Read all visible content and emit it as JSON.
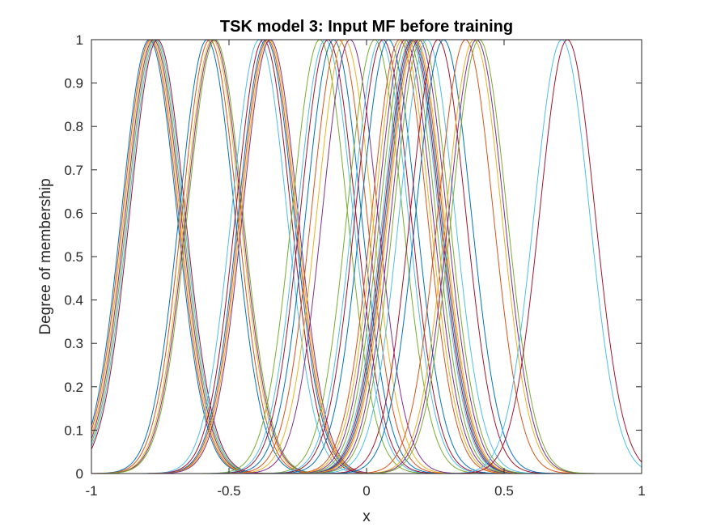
{
  "chart_data": {
    "type": "line",
    "title": "TSK model 3: Input MF before training",
    "xlabel": "x",
    "ylabel": "Degree of membership",
    "xlim": [
      -1,
      1
    ],
    "ylim": [
      0,
      1
    ],
    "xticks": [
      -1,
      -0.5,
      0,
      0.5,
      1
    ],
    "xtick_labels": [
      "-1",
      "-0.5",
      "0",
      "0.5",
      "1"
    ],
    "yticks": [
      0,
      0.1,
      0.2,
      0.3,
      0.4,
      0.5,
      0.6,
      0.7,
      0.8,
      0.9,
      1
    ],
    "ytick_labels": [
      "0",
      "0.1",
      "0.2",
      "0.3",
      "0.4",
      "0.5",
      "0.6",
      "0.7",
      "0.8",
      "0.9",
      "1"
    ],
    "grid": false,
    "legend": "none",
    "series_kind": "gaussian membership functions (peak 1)",
    "sigma": 0.1,
    "curve_centers": [
      -0.79,
      -0.785,
      -0.78,
      -0.775,
      -0.77,
      -0.765,
      -0.76,
      -0.58,
      -0.57,
      -0.56,
      -0.555,
      -0.55,
      -0.39,
      -0.375,
      -0.365,
      -0.36,
      -0.355,
      -0.35,
      -0.17,
      -0.15,
      -0.14,
      -0.12,
      -0.1,
      -0.08,
      -0.06,
      0.03,
      0.05,
      0.06,
      0.08,
      0.12,
      0.13,
      0.14,
      0.15,
      0.16,
      0.165,
      0.17,
      0.175,
      0.18,
      0.19,
      0.2,
      0.22,
      0.26,
      0.28,
      0.36,
      0.39,
      0.4,
      0.41,
      0.71,
      0.73
    ],
    "colors": [
      "#0072BD",
      "#D95319",
      "#EDB120",
      "#7E2F8E",
      "#77AC30",
      "#4DBEEE",
      "#A2142F"
    ]
  }
}
